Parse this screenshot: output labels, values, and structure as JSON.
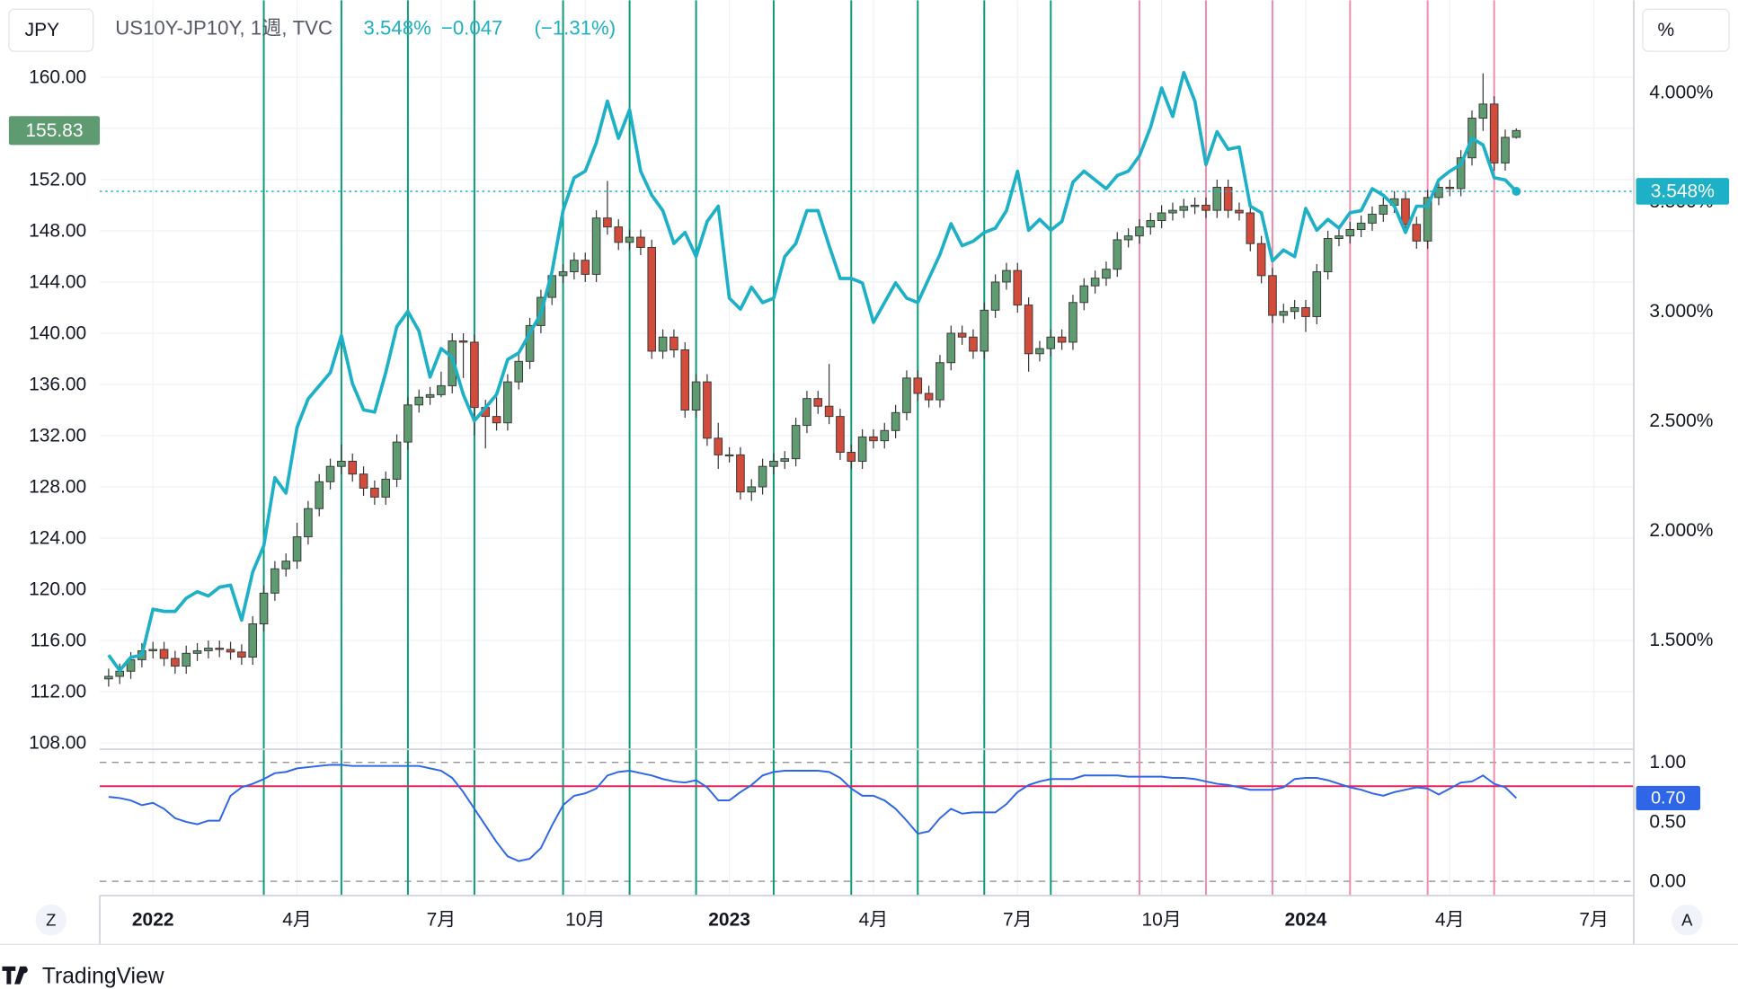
{
  "header": {
    "symbol": "JPY",
    "name": "US10Y-JP10Y, 1週, TVC",
    "value": "3.548%",
    "change": "−0.047",
    "change_pct": "(−1.31%)",
    "right_unit": "%",
    "left_button": "Z",
    "right_button": "A",
    "brand": "TradingView"
  },
  "chart_data": [
    {
      "type": "candlestick",
      "x": [
        -4,
        -3,
        -2,
        -1,
        0,
        1,
        2,
        3,
        4,
        5,
        6,
        7,
        8,
        9,
        10,
        11,
        12,
        13,
        14,
        15,
        16,
        17,
        18,
        19,
        20,
        21,
        22,
        23,
        24,
        25,
        26,
        27,
        28,
        29,
        30,
        31,
        32,
        33,
        34,
        35,
        36,
        37,
        38,
        39,
        40,
        41,
        42,
        43,
        44,
        45,
        46,
        47,
        48,
        49,
        50,
        51,
        52,
        53,
        54,
        55,
        56,
        57,
        58,
        59,
        60,
        61,
        62,
        63,
        64,
        65,
        66,
        67,
        68,
        69,
        70,
        71,
        72,
        73,
        74,
        75,
        76,
        77,
        78,
        79,
        80,
        81,
        82,
        83,
        84,
        85,
        86,
        87,
        88,
        89,
        90,
        91,
        92,
        93,
        94,
        95,
        96,
        97,
        98,
        99,
        100,
        101,
        102,
        103,
        104,
        105,
        106,
        107,
        108,
        109,
        110,
        111,
        112,
        113,
        114,
        115,
        116,
        117,
        118,
        119,
        120,
        121,
        122,
        123
      ],
      "open": [
        113.0,
        113.2,
        113.6,
        114.5,
        115.2,
        115.3,
        114.6,
        114.0,
        115.0,
        115.2,
        115.4,
        115.3,
        115.1,
        114.7,
        117.3,
        119.7,
        121.6,
        122.2,
        124.1,
        126.3,
        128.4,
        129.6,
        130.0,
        129.0,
        127.9,
        127.2,
        128.6,
        131.5,
        134.4,
        135.0,
        135.2,
        135.9,
        139.4,
        139.3,
        134.2,
        133.5,
        133.0,
        136.2,
        137.8,
        140.6,
        142.8,
        144.5,
        144.8,
        145.7,
        144.6,
        149.0,
        148.3,
        147.1,
        147.5,
        146.7,
        138.6,
        139.7,
        138.7,
        134.0,
        136.2,
        131.8,
        130.5,
        130.5,
        127.6,
        128.0,
        129.6,
        130.0,
        130.2,
        132.8,
        134.9,
        134.3,
        133.5,
        130.7,
        130.0,
        131.9,
        131.6,
        132.4,
        133.8,
        136.5,
        135.3,
        134.8,
        137.7,
        140.0,
        139.7,
        138.6,
        141.8,
        144.0,
        144.9,
        142.2,
        138.4,
        138.8,
        139.7,
        139.3,
        142.4,
        143.7,
        144.3,
        145.0,
        147.3,
        147.6,
        148.3,
        148.8,
        149.4,
        149.6,
        149.9,
        150.0,
        149.6,
        151.4,
        149.6,
        149.4,
        147.0,
        144.5,
        141.4,
        141.7,
        142.0,
        141.3,
        144.8,
        147.4,
        147.6,
        148.1,
        148.6,
        149.3,
        150.0,
        150.5,
        148.5,
        147.2,
        150.6,
        151.4,
        151.3,
        153.7,
        156.8,
        157.9,
        153.3,
        155.3
      ],
      "high": [
        113.8,
        114.2,
        115.1,
        115.8,
        115.9,
        115.9,
        115.2,
        115.6,
        115.8,
        116.0,
        116.0,
        115.9,
        115.7,
        117.9,
        120.3,
        122.2,
        122.8,
        125.2,
        126.9,
        129.0,
        130.2,
        131.3,
        130.6,
        129.6,
        128.5,
        129.2,
        132.1,
        135.0,
        135.6,
        135.8,
        137.0,
        140.0,
        140.0,
        139.9,
        134.8,
        135.0,
        136.8,
        138.4,
        141.2,
        143.4,
        145.1,
        145.4,
        146.3,
        146.3,
        149.6,
        151.9,
        148.9,
        148.1,
        148.1,
        147.3,
        140.3,
        140.3,
        139.3,
        136.8,
        136.8,
        133.0,
        131.1,
        131.1,
        128.6,
        130.2,
        130.6,
        130.8,
        133.4,
        135.5,
        135.5,
        137.6,
        134.1,
        131.3,
        132.5,
        132.5,
        133.0,
        134.4,
        137.1,
        137.1,
        135.9,
        138.3,
        140.6,
        140.6,
        140.3,
        142.4,
        144.6,
        145.5,
        145.5,
        142.8,
        139.4,
        140.3,
        140.3,
        143.0,
        144.3,
        144.9,
        145.6,
        147.9,
        148.2,
        148.9,
        149.4,
        150.0,
        150.2,
        150.5,
        150.6,
        150.6,
        152.0,
        152.0,
        150.2,
        150.0,
        147.6,
        145.1,
        142.3,
        142.6,
        142.6,
        145.4,
        148.0,
        148.2,
        148.7,
        149.2,
        149.9,
        150.6,
        151.1,
        151.1,
        149.1,
        151.2,
        152.0,
        152.0,
        154.3,
        157.4,
        160.3,
        158.5,
        155.9,
        156.0
      ],
      "low": [
        112.4,
        112.6,
        113.0,
        113.9,
        114.6,
        114.0,
        113.4,
        113.4,
        114.4,
        114.6,
        114.7,
        114.5,
        114.1,
        114.1,
        116.7,
        119.1,
        121.0,
        121.6,
        123.5,
        125.7,
        127.8,
        129.0,
        128.4,
        127.3,
        126.6,
        126.6,
        128.0,
        130.9,
        133.8,
        134.4,
        135.0,
        135.3,
        136.5,
        132.0,
        131.0,
        132.4,
        132.4,
        135.6,
        137.2,
        140.0,
        142.2,
        143.9,
        144.2,
        144.0,
        144.0,
        147.7,
        146.5,
        146.5,
        146.1,
        138.0,
        138.0,
        138.1,
        133.4,
        133.4,
        131.2,
        129.4,
        129.9,
        127.0,
        126.9,
        127.4,
        129.0,
        129.4,
        129.6,
        132.2,
        133.7,
        132.9,
        130.1,
        129.4,
        129.4,
        131.0,
        131.0,
        131.8,
        133.2,
        134.7,
        134.2,
        134.2,
        137.1,
        139.1,
        138.0,
        138.0,
        141.2,
        143.4,
        141.6,
        137.0,
        137.8,
        138.2,
        138.7,
        138.7,
        141.8,
        143.1,
        143.7,
        144.4,
        146.7,
        147.0,
        147.7,
        148.2,
        148.8,
        149.0,
        149.3,
        149.0,
        149.0,
        149.0,
        148.8,
        146.4,
        143.9,
        140.8,
        140.8,
        141.1,
        140.1,
        140.7,
        144.2,
        146.8,
        147.0,
        147.5,
        148.0,
        148.7,
        149.4,
        147.9,
        146.6,
        146.6,
        150.0,
        150.7,
        150.7,
        153.1,
        155.8,
        152.7,
        152.7,
        155.2
      ],
      "close": [
        113.2,
        113.6,
        114.5,
        115.2,
        115.3,
        114.6,
        114.0,
        115.0,
        115.2,
        115.4,
        115.3,
        115.1,
        114.7,
        117.3,
        119.7,
        121.6,
        122.2,
        124.1,
        126.3,
        128.4,
        129.6,
        130.0,
        129.0,
        127.9,
        127.2,
        128.6,
        131.5,
        134.4,
        135.0,
        135.2,
        135.9,
        139.4,
        139.3,
        134.2,
        133.5,
        133.0,
        136.2,
        137.8,
        140.6,
        142.8,
        144.5,
        144.8,
        145.7,
        144.6,
        149.0,
        148.3,
        147.1,
        147.5,
        146.7,
        138.6,
        139.7,
        138.7,
        134.0,
        136.2,
        131.8,
        130.5,
        130.5,
        127.6,
        128.0,
        129.6,
        130.0,
        130.2,
        132.8,
        134.9,
        134.3,
        133.5,
        130.7,
        130.0,
        131.9,
        131.6,
        132.4,
        133.8,
        136.5,
        135.3,
        134.8,
        137.7,
        140.0,
        139.7,
        138.6,
        141.8,
        144.0,
        144.9,
        142.2,
        138.4,
        138.8,
        139.7,
        139.3,
        142.4,
        143.7,
        144.3,
        145.0,
        147.3,
        147.6,
        148.3,
        148.8,
        149.4,
        149.6,
        149.9,
        150.0,
        149.6,
        151.4,
        149.6,
        149.4,
        147.0,
        144.5,
        141.4,
        141.7,
        142.0,
        141.3,
        144.8,
        147.4,
        147.6,
        148.1,
        148.6,
        149.3,
        150.0,
        150.5,
        148.5,
        147.2,
        150.6,
        151.4,
        151.3,
        153.7,
        156.8,
        157.9,
        153.3,
        155.3,
        155.83
      ],
      "up_color": "#5f9b70",
      "down_color": "#d24b3b",
      "edge_color": "#3a3a3a",
      "series": [
        {
          "name": "US10Y-JP10Y, 1週, TVC",
          "color": "#1eb0c6",
          "axis": "y2",
          "last_value_label": "3.548%",
          "values": [
            1.43,
            1.36,
            1.42,
            1.43,
            1.64,
            1.63,
            1.63,
            1.69,
            1.72,
            1.7,
            1.74,
            1.75,
            1.59,
            1.81,
            1.93,
            2.24,
            2.17,
            2.47,
            2.6,
            2.66,
            2.72,
            2.89,
            2.67,
            2.55,
            2.54,
            2.72,
            2.93,
            3.0,
            2.91,
            2.7,
            2.83,
            2.79,
            2.62,
            2.5,
            2.56,
            2.62,
            2.78,
            2.81,
            2.9,
            2.99,
            3.18,
            3.46,
            3.61,
            3.64,
            3.77,
            3.96,
            3.79,
            3.92,
            3.64,
            3.53,
            3.46,
            3.31,
            3.36,
            3.25,
            3.41,
            3.48,
            3.06,
            3.01,
            3.11,
            3.04,
            3.06,
            3.25,
            3.31,
            3.46,
            3.46,
            3.3,
            3.15,
            3.15,
            3.13,
            2.95,
            3.04,
            3.13,
            3.06,
            3.04,
            3.15,
            3.26,
            3.4,
            3.3,
            3.32,
            3.36,
            3.38,
            3.46,
            3.64,
            3.37,
            3.42,
            3.37,
            3.41,
            3.59,
            3.64,
            3.6,
            3.56,
            3.62,
            3.64,
            3.71,
            3.84,
            4.02,
            3.89,
            4.09,
            3.96,
            3.67,
            3.82,
            3.74,
            3.75,
            3.48,
            3.45,
            3.23,
            3.28,
            3.25,
            3.47,
            3.37,
            3.42,
            3.38,
            3.45,
            3.46,
            3.56,
            3.53,
            3.48,
            3.36,
            3.48,
            3.48,
            3.6,
            3.64,
            3.67,
            3.79,
            3.76,
            3.61,
            3.6,
            3.548
          ]
        }
      ],
      "xlim": [
        -4.8,
        133.6
      ],
      "xticks": [
        {
          "value": 0,
          "label": "2022"
        },
        {
          "value": 13,
          "label": "4月"
        },
        {
          "value": 26,
          "label": "7月"
        },
        {
          "value": 39,
          "label": "10月"
        },
        {
          "value": 52,
          "label": "2023"
        },
        {
          "value": 65,
          "label": "4月"
        },
        {
          "value": 78,
          "label": "7月"
        },
        {
          "value": 91,
          "label": "10月"
        },
        {
          "value": 104,
          "label": "2024"
        },
        {
          "value": 117,
          "label": "4月"
        },
        {
          "value": 130,
          "label": "7月"
        }
      ],
      "ylim": [
        107.5,
        166.0
      ],
      "yticks": [
        {
          "value": 108,
          "label": "108.00"
        },
        {
          "value": 112,
          "label": "112.00"
        },
        {
          "value": 116,
          "label": "116.00"
        },
        {
          "value": 120,
          "label": "120.00"
        },
        {
          "value": 124,
          "label": "124.00"
        },
        {
          "value": 128,
          "label": "128.00"
        },
        {
          "value": 132,
          "label": "132.00"
        },
        {
          "value": 136,
          "label": "136.00"
        },
        {
          "value": 140,
          "label": "140.00"
        },
        {
          "value": 144,
          "label": "144.00"
        },
        {
          "value": 148,
          "label": "148.00"
        },
        {
          "value": 152,
          "label": "152.00"
        },
        {
          "value": 156,
          "label": "156.00"
        },
        {
          "value": 160,
          "label": "160.00"
        }
      ],
      "y2lim": [
        1.0,
        4.42
      ],
      "y2ticks": [
        {
          "value": 1.5,
          "label": "1.500%"
        },
        {
          "value": 2,
          "label": "2.000%"
        },
        {
          "value": 2.5,
          "label": "2.500%"
        },
        {
          "value": 3,
          "label": "3.000%"
        },
        {
          "value": 3.5,
          "label": "3.500%"
        },
        {
          "value": 4,
          "label": "4.000%"
        }
      ],
      "grid": true,
      "vlines": [
        {
          "x": 10,
          "color": "#0a9a78"
        },
        {
          "x": 17,
          "color": "#0a9a78"
        },
        {
          "x": 23,
          "color": "#0a9a78"
        },
        {
          "x": 29,
          "color": "#0a9a78"
        },
        {
          "x": 37,
          "color": "#0a9a78"
        },
        {
          "x": 43,
          "color": "#0a9a78"
        },
        {
          "x": 49,
          "color": "#0a9a78"
        },
        {
          "x": 56,
          "color": "#0a9a78"
        },
        {
          "x": 63,
          "color": "#0a9a78"
        },
        {
          "x": 69,
          "color": "#0a9a78"
        },
        {
          "x": 75,
          "color": "#0a9a78"
        },
        {
          "x": 81,
          "color": "#0a9a78"
        },
        {
          "x": 89,
          "color": "#f28aa8"
        },
        {
          "x": 95,
          "color": "#f28aa8"
        },
        {
          "x": 101,
          "color": "#f28aa8"
        },
        {
          "x": 108,
          "color": "#f28aa8"
        },
        {
          "x": 115,
          "color": "#f28aa8"
        },
        {
          "x": 121,
          "color": "#f28aa8"
        }
      ]
    },
    {
      "type": "line",
      "color": "#2f66e8",
      "last_value_label": "0.70",
      "values": [
        0.71,
        0.7,
        0.68,
        0.64,
        0.66,
        0.61,
        0.53,
        0.5,
        0.48,
        0.51,
        0.51,
        0.72,
        0.79,
        0.82,
        0.86,
        0.91,
        0.92,
        0.95,
        0.96,
        0.97,
        0.98,
        0.98,
        0.97,
        0.97,
        0.97,
        0.97,
        0.97,
        0.97,
        0.97,
        0.95,
        0.93,
        0.87,
        0.75,
        0.61,
        0.47,
        0.33,
        0.21,
        0.17,
        0.19,
        0.28,
        0.47,
        0.64,
        0.72,
        0.74,
        0.78,
        0.89,
        0.92,
        0.93,
        0.91,
        0.89,
        0.86,
        0.84,
        0.83,
        0.85,
        0.79,
        0.68,
        0.68,
        0.75,
        0.81,
        0.89,
        0.92,
        0.93,
        0.93,
        0.93,
        0.93,
        0.92,
        0.87,
        0.78,
        0.72,
        0.72,
        0.68,
        0.61,
        0.51,
        0.4,
        0.42,
        0.53,
        0.61,
        0.57,
        0.58,
        0.58,
        0.58,
        0.65,
        0.75,
        0.81,
        0.84,
        0.86,
        0.86,
        0.86,
        0.89,
        0.89,
        0.89,
        0.89,
        0.88,
        0.88,
        0.88,
        0.88,
        0.87,
        0.87,
        0.86,
        0.84,
        0.82,
        0.81,
        0.79,
        0.77,
        0.77,
        0.77,
        0.79,
        0.86,
        0.87,
        0.87,
        0.85,
        0.82,
        0.79,
        0.77,
        0.74,
        0.72,
        0.75,
        0.77,
        0.79,
        0.78,
        0.73,
        0.78,
        0.83,
        0.84,
        0.89,
        0.82,
        0.79,
        0.7
      ],
      "ylim": [
        -0.12,
        1.11
      ],
      "yticks": [
        {
          "value": 0,
          "label": "0.00"
        },
        {
          "value": 0.5,
          "label": "0.50"
        },
        {
          "value": 1,
          "label": "1.00"
        }
      ],
      "dashed_levels": [
        0,
        1
      ],
      "hlines": [
        {
          "y": 0.8,
          "color": "#e3245c"
        }
      ]
    }
  ]
}
